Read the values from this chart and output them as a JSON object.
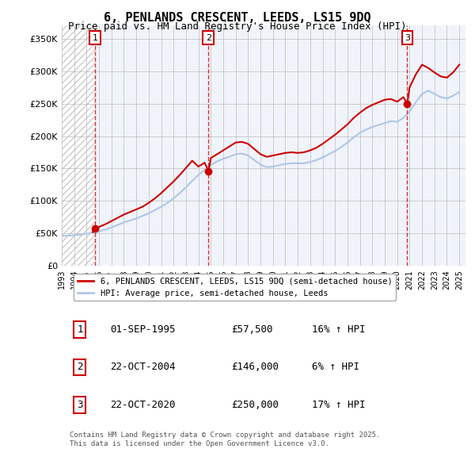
{
  "title": "6, PENLANDS CRESCENT, LEEDS, LS15 9DQ",
  "subtitle": "Price paid vs. HM Land Registry's House Price Index (HPI)",
  "ylabel_ticks": [
    "£0",
    "£50K",
    "£100K",
    "£150K",
    "£200K",
    "£250K",
    "£300K",
    "£350K"
  ],
  "ytick_values": [
    0,
    50000,
    100000,
    150000,
    200000,
    250000,
    300000,
    350000
  ],
  "ylim": [
    0,
    370000
  ],
  "xlim_start": 1993.0,
  "xlim_end": 2025.5,
  "xtick_years": [
    1993,
    1994,
    1995,
    1996,
    1997,
    1998,
    1999,
    2000,
    2001,
    2002,
    2003,
    2004,
    2005,
    2006,
    2007,
    2008,
    2009,
    2010,
    2011,
    2012,
    2013,
    2014,
    2015,
    2016,
    2017,
    2018,
    2019,
    2020,
    2021,
    2022,
    2023,
    2024,
    2025
  ],
  "sale_dates": [
    1995.67,
    2004.81,
    2020.81
  ],
  "sale_prices": [
    57500,
    146000,
    250000
  ],
  "sale_labels": [
    "1",
    "2",
    "3"
  ],
  "hpi_color": "#aec6e8",
  "price_color": "#cc0000",
  "hatch_color": "#cccccc",
  "background_plot": "#f0f4fa",
  "grid_color": "#bbbbbb",
  "dashed_line_color": "#cc0000",
  "legend_line1": "6, PENLANDS CRESCENT, LEEDS, LS15 9DQ (semi-detached house)",
  "legend_line2": "HPI: Average price, semi-detached house, Leeds",
  "table_rows": [
    [
      "1",
      "01-SEP-1995",
      "£57,500",
      "16% ↑ HPI"
    ],
    [
      "2",
      "22-OCT-2004",
      "£146,000",
      "6% ↑ HPI"
    ],
    [
      "3",
      "22-OCT-2020",
      "£250,000",
      "17% ↑ HPI"
    ]
  ],
  "footnote": "Contains HM Land Registry data © Crown copyright and database right 2025.\nThis data is licensed under the Open Government Licence v3.0.",
  "hpi_x": [
    1993.0,
    1993.5,
    1994.0,
    1994.5,
    1995.0,
    1995.5,
    1996.0,
    1996.5,
    1997.0,
    1997.5,
    1998.0,
    1998.5,
    1999.0,
    1999.5,
    2000.0,
    2000.5,
    2001.0,
    2001.5,
    2002.0,
    2002.5,
    2003.0,
    2003.5,
    2004.0,
    2004.5,
    2005.0,
    2005.5,
    2006.0,
    2006.5,
    2007.0,
    2007.5,
    2008.0,
    2008.5,
    2009.0,
    2009.5,
    2010.0,
    2010.5,
    2011.0,
    2011.5,
    2012.0,
    2012.5,
    2013.0,
    2013.5,
    2014.0,
    2014.5,
    2015.0,
    2015.5,
    2016.0,
    2016.5,
    2017.0,
    2017.5,
    2018.0,
    2018.5,
    2019.0,
    2019.5,
    2020.0,
    2020.5,
    2021.0,
    2021.5,
    2022.0,
    2022.5,
    2023.0,
    2023.5,
    2024.0,
    2024.5,
    2025.0
  ],
  "hpi_y": [
    46000,
    46500,
    47000,
    48000,
    49500,
    51000,
    53000,
    56000,
    59000,
    63000,
    67000,
    70000,
    73000,
    77000,
    81000,
    86000,
    91000,
    97000,
    104000,
    112000,
    121000,
    131000,
    140000,
    148000,
    155000,
    161000,
    165000,
    168000,
    172000,
    173000,
    170000,
    163000,
    156000,
    152000,
    153000,
    155000,
    157000,
    158000,
    158000,
    158000,
    160000,
    163000,
    167000,
    172000,
    177000,
    183000,
    190000,
    198000,
    205000,
    210000,
    214000,
    217000,
    220000,
    223000,
    222000,
    228000,
    238000,
    252000,
    265000,
    270000,
    265000,
    260000,
    258000,
    262000,
    268000
  ],
  "price_x": [
    1995.5,
    1995.67,
    1995.8,
    1996.0,
    1996.5,
    1997.0,
    1997.5,
    1998.0,
    1998.5,
    1999.0,
    1999.5,
    2000.0,
    2000.5,
    2001.0,
    2001.5,
    2002.0,
    2002.5,
    2003.0,
    2003.5,
    2004.0,
    2004.5,
    2004.81,
    2005.0,
    2005.5,
    2006.0,
    2006.5,
    2007.0,
    2007.5,
    2008.0,
    2008.5,
    2009.0,
    2009.5,
    2010.0,
    2010.5,
    2011.0,
    2011.5,
    2012.0,
    2012.5,
    2013.0,
    2013.5,
    2014.0,
    2014.5,
    2015.0,
    2015.5,
    2016.0,
    2016.5,
    2017.0,
    2017.5,
    2018.0,
    2018.5,
    2019.0,
    2019.5,
    2020.0,
    2020.5,
    2020.81,
    2021.0,
    2021.5,
    2022.0,
    2022.5,
    2023.0,
    2023.5,
    2024.0,
    2024.5,
    2025.0
  ],
  "price_y": [
    52000,
    57500,
    58500,
    60000,
    64000,
    69000,
    74000,
    79000,
    83000,
    87000,
    91000,
    97000,
    104000,
    112000,
    121000,
    130000,
    140000,
    151000,
    162000,
    153000,
    159000,
    146000,
    166000,
    172000,
    178000,
    184000,
    190000,
    191000,
    188000,
    180000,
    172000,
    168000,
    170000,
    172000,
    174000,
    175000,
    174000,
    175000,
    178000,
    182000,
    188000,
    195000,
    202000,
    210000,
    218000,
    228000,
    236000,
    243000,
    248000,
    252000,
    256000,
    257000,
    253000,
    260000,
    250000,
    275000,
    295000,
    310000,
    305000,
    298000,
    292000,
    290000,
    298000,
    310000
  ]
}
